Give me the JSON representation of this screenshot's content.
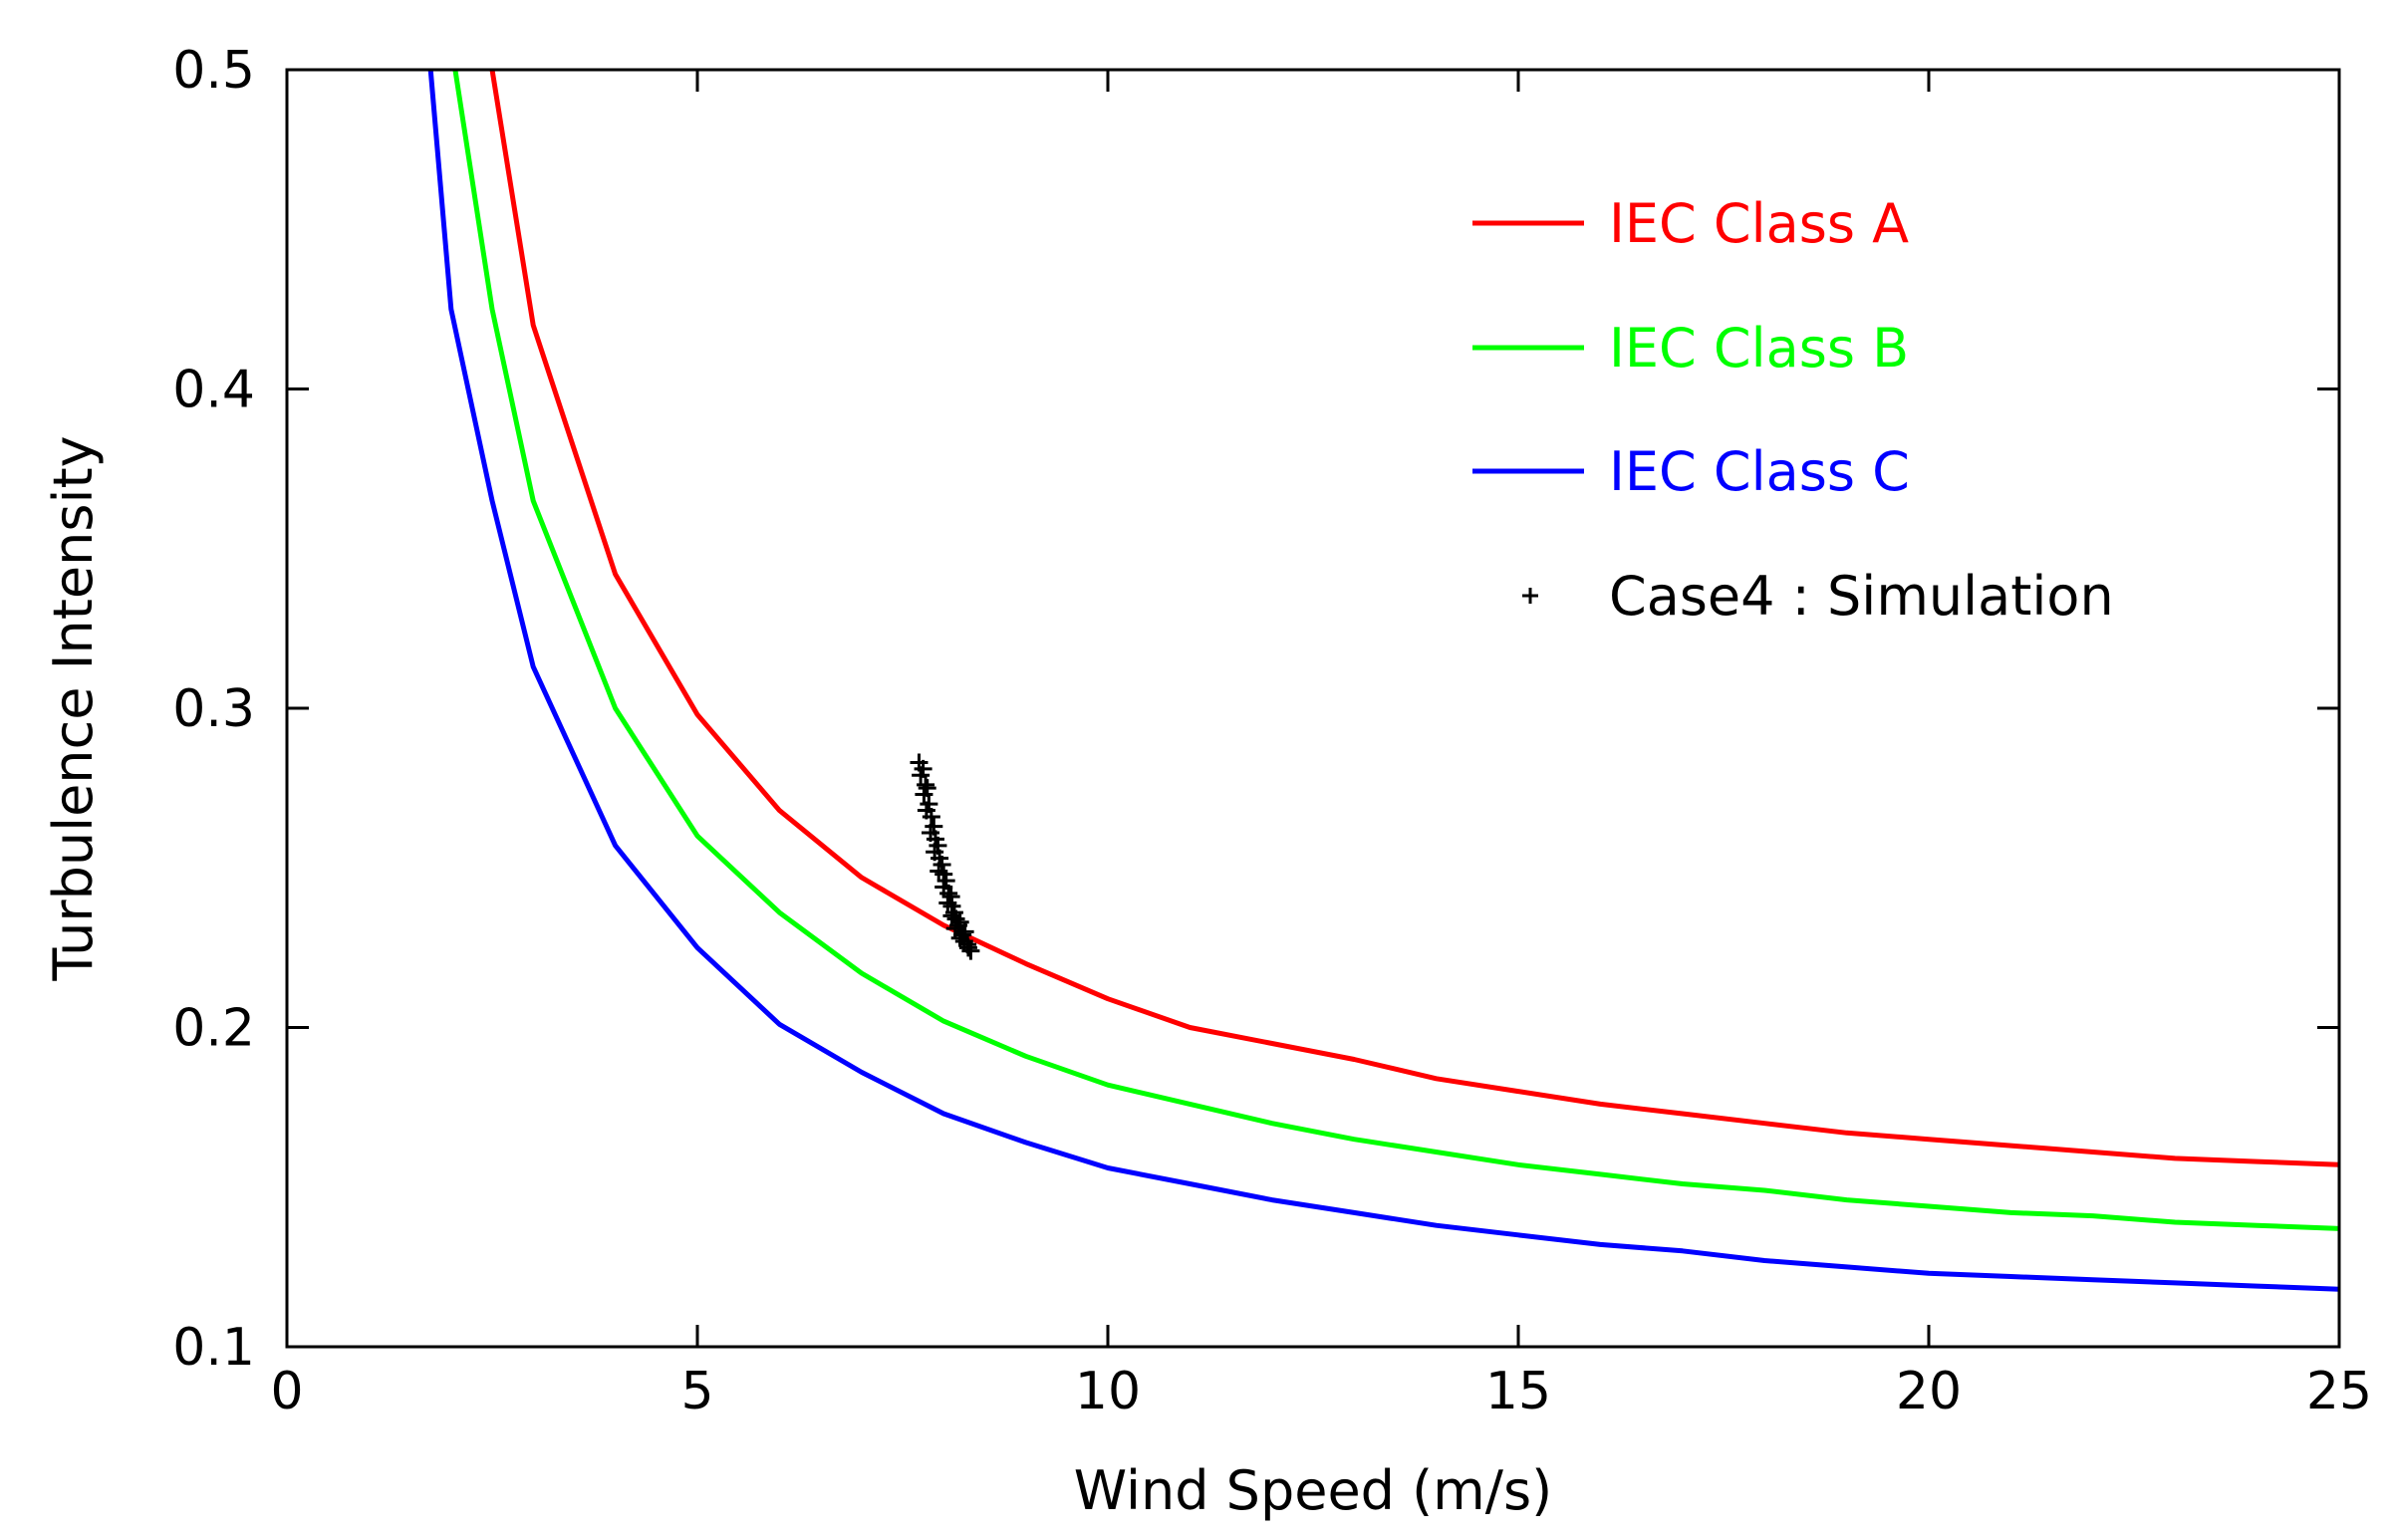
{
  "chart_data": {
    "type": "line",
    "title": "",
    "xlabel": "Wind Speed (m/s)",
    "ylabel": "Turbulence Intensity",
    "xlim": [
      0,
      25
    ],
    "ylim": [
      0.1,
      0.5
    ],
    "xticks": [
      0,
      5,
      10,
      15,
      20,
      25
    ],
    "yticks": [
      0.1,
      0.2,
      0.3,
      0.4,
      0.5
    ],
    "xtick_labels": [
      "0",
      "5",
      "10",
      "15",
      "20",
      "25"
    ],
    "ytick_labels": [
      "0.1",
      "0.2",
      "0.3",
      "0.4",
      "0.5"
    ],
    "grid": false,
    "legend_position": "top-right",
    "series": [
      {
        "name": "IEC Class A",
        "color": "#ff0000",
        "style": "line",
        "x": [
          2.5,
          3,
          4,
          5,
          6,
          7,
          8,
          9,
          10,
          11,
          12,
          13,
          14,
          15,
          16,
          17,
          18,
          19,
          20,
          21,
          22,
          23,
          24,
          25
        ],
        "y": [
          0.5,
          0.42,
          0.342,
          0.298,
          0.268,
          0.247,
          0.232,
          0.22,
          0.209,
          0.2,
          0.195,
          0.19,
          0.184,
          0.18,
          0.176,
          0.173,
          0.17,
          0.167,
          0.165,
          0.163,
          0.161,
          0.159,
          0.158,
          0.157
        ]
      },
      {
        "name": "IEC Class B",
        "color": "#00ff00",
        "style": "line",
        "x": [
          2.05,
          2.5,
          3,
          4,
          5,
          6,
          7,
          8,
          9,
          10,
          11,
          12,
          13,
          14,
          15,
          16,
          17,
          18,
          19,
          20,
          21,
          22,
          23,
          24,
          25
        ],
        "y": [
          0.5,
          0.425,
          0.365,
          0.3,
          0.26,
          0.236,
          0.217,
          0.202,
          0.191,
          0.182,
          0.176,
          0.17,
          0.165,
          0.161,
          0.157,
          0.154,
          0.151,
          0.149,
          0.146,
          0.144,
          0.142,
          0.141,
          0.139,
          0.138,
          0.137
        ]
      },
      {
        "name": "IEC Class C",
        "color": "#0000ff",
        "style": "line",
        "x": [
          1.75,
          2,
          2.5,
          3,
          4,
          5,
          6,
          7,
          8,
          9,
          10,
          11,
          12,
          13,
          14,
          15,
          16,
          17,
          18,
          19,
          20,
          21,
          22,
          23,
          24,
          25
        ],
        "y": [
          0.5,
          0.425,
          0.365,
          0.313,
          0.257,
          0.225,
          0.201,
          0.186,
          0.173,
          0.164,
          0.156,
          0.151,
          0.146,
          0.142,
          0.138,
          0.135,
          0.132,
          0.13,
          0.127,
          0.125,
          0.123,
          0.122,
          0.121,
          0.12,
          0.119,
          0.118
        ]
      },
      {
        "name": "Case4 : Simulation",
        "color": "#000000",
        "style": "marker-plus",
        "x": [
          7.7,
          7.72,
          7.75,
          7.78,
          7.76,
          7.8,
          7.82,
          7.79,
          7.85,
          7.88,
          7.84,
          7.9,
          7.93,
          7.89,
          7.95,
          7.98,
          7.94,
          8.0,
          8.03,
          8.0,
          8.06,
          8.09,
          8.05,
          8.1,
          8.13,
          8.1,
          8.15,
          8.18,
          8.14,
          8.2,
          8.23,
          8.2,
          8.26,
          8.29,
          8.25,
          8.3,
          8.33
        ],
        "y": [
          0.283,
          0.279,
          0.281,
          0.276,
          0.273,
          0.275,
          0.27,
          0.268,
          0.266,
          0.263,
          0.261,
          0.259,
          0.257,
          0.255,
          0.253,
          0.251,
          0.249,
          0.248,
          0.246,
          0.244,
          0.242,
          0.241,
          0.239,
          0.238,
          0.236,
          0.235,
          0.234,
          0.232,
          0.231,
          0.233,
          0.229,
          0.228,
          0.23,
          0.226,
          0.227,
          0.225,
          0.224
        ]
      }
    ]
  }
}
